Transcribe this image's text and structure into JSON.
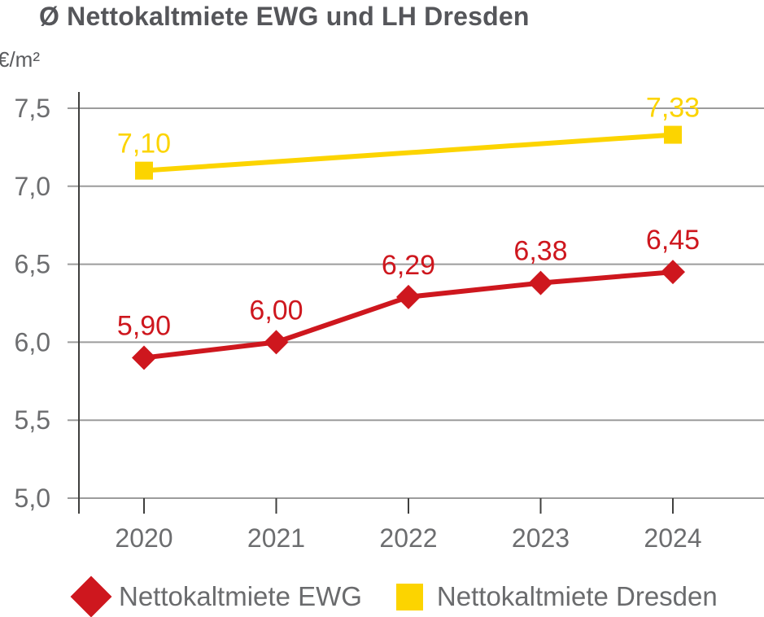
{
  "title": "Ø Nettokaltmiete EWG und LH Dresden",
  "unit_label": "€/m²",
  "colors": {
    "ewg_red": "#CE171E",
    "dresden_yellow": "#FCD400",
    "title_text": "#55565A",
    "axis_text": "#6C6D6F",
    "grid_line": "#9C9C9C",
    "axis_line": "#3F3F3E"
  },
  "legend": {
    "ewg_label": "Nettokaltmiete EWG",
    "dresden_label": "Nettokaltmiete Dresden"
  },
  "chart_data": {
    "type": "line",
    "title": "Ø Nettokaltmiete EWG und LH Dresden",
    "ylabel": "€/m²",
    "xlabel": "",
    "x": [
      2020,
      2021,
      2022,
      2023,
      2024
    ],
    "series": [
      {
        "name": "Nettokaltmiete EWG",
        "color": "#CE171E",
        "marker": "diamond",
        "values": [
          5.9,
          6.0,
          6.29,
          6.38,
          6.45
        ],
        "labels": [
          "5,90",
          "6,00",
          "6,29",
          "6,38",
          "6,45"
        ]
      },
      {
        "name": "Nettokaltmiete Dresden",
        "color": "#FCD400",
        "marker": "square",
        "x": [
          2020,
          2024
        ],
        "values": [
          7.1,
          7.33
        ],
        "labels": [
          "7,10",
          "7,33"
        ]
      }
    ],
    "ylim": [
      5.0,
      7.5
    ],
    "ytick_step": 0.5,
    "ytick_labels": [
      "5,0",
      "5,5",
      "6,0",
      "6,5",
      "7,0",
      "7,5"
    ],
    "grid": true,
    "legend_position": "bottom"
  }
}
